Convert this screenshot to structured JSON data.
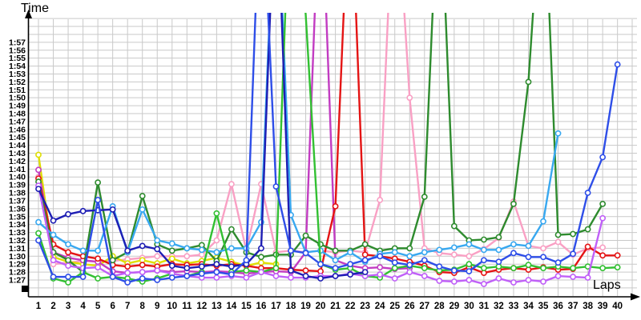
{
  "labels": {
    "y_axis_title": "Time",
    "x_axis_title": "Laps"
  },
  "chart_data": {
    "type": "line",
    "title": "",
    "xlabel": "Laps",
    "ylabel": "Time",
    "grid": true,
    "legend_position": "none",
    "x_tick_labels": [
      "1",
      "2",
      "3",
      "4",
      "5",
      "6",
      "7",
      "8",
      "9",
      "10",
      "11",
      "12",
      "13",
      "14",
      "15",
      "16",
      "17",
      "18",
      "19",
      "20",
      "21",
      "22",
      "23",
      "24",
      "25",
      "26",
      "27",
      "28",
      "29",
      "30",
      "31",
      "32",
      "33",
      "34",
      "35",
      "36",
      "37",
      "38",
      "39",
      "40"
    ],
    "y_tick_labels": [
      "1:27",
      "1:28",
      "1:29",
      "1:30",
      "1:31",
      "1:32",
      "1:33",
      "1:34",
      "1:35",
      "1:36",
      "1:37",
      "1:38",
      "1:39",
      "1:40",
      "1:41",
      "1:42",
      "1:43",
      "1:44",
      "1:45",
      "1:46",
      "1:47",
      "1:48",
      "1:49",
      "1:50",
      "1:51",
      "1:52",
      "1:53",
      "1:54",
      "1:55",
      "1:56",
      "1:57"
    ],
    "y_min_seconds": 87,
    "y_max_seconds": 117,
    "offscale_marker_value": 140,
    "units": "lap time in seconds (1:27 = 87s); 140 = spike above chart top (pit stop)",
    "series": [
      {
        "name": "pink",
        "color": "#f9a0c4",
        "values": [
          100,
          89,
          89.2,
          89.4,
          89.3,
          89.4,
          89.6,
          89.8,
          90,
          90,
          90,
          90.2,
          92,
          99.1,
          90.7,
          99.1,
          90.5,
          90.7,
          90.5,
          90.7,
          90.5,
          90.7,
          90.5,
          97.1,
          140,
          110,
          91,
          90.4,
          90.2,
          90,
          90.9,
          92.3,
          96.9,
          91.3,
          91,
          91.8,
          90.2,
          91,
          91.1
        ]
      },
      {
        "name": "yellow",
        "color": "#dede00",
        "values": [
          102.8,
          89.9,
          89.3,
          89,
          88.8,
          90,
          89.1,
          89.5,
          89.1,
          89.7,
          89.1,
          89.4,
          89.8,
          89.3,
          88.8,
          89.2,
          89
        ]
      },
      {
        "name": "magenta",
        "color": "#c23cc2",
        "values": [
          100.9,
          90.5,
          89.8,
          89.5,
          89.3,
          88.1,
          87.9,
          88,
          88.2,
          88,
          88.1,
          88,
          88.1,
          88,
          87.8,
          88,
          88.1,
          88,
          90.5,
          140,
          89.5,
          88.8,
          88.5,
          88.6,
          88.4,
          88.5
        ]
      },
      {
        "name": "red",
        "color": "#e41414",
        "values": [
          99.8,
          91.5,
          90.5,
          90,
          89.7,
          88.9,
          88.7,
          88.9,
          88.7,
          89,
          88.9,
          89,
          88.8,
          89,
          88.8,
          88.5,
          88.5,
          88.3,
          88.2,
          88.1,
          96.3,
          140,
          90.2,
          90,
          89.7,
          89.3,
          88.8,
          88,
          87.9,
          88.6,
          87.9,
          88.3,
          88.5,
          88.3,
          88.6,
          88.3,
          88.4,
          91.2,
          90.1,
          90.1
        ]
      },
      {
        "name": "dark-green",
        "color": "#2e8b2e",
        "values": [
          99.4,
          90.5,
          89.5,
          88,
          99.3,
          89.5,
          90.5,
          97.6,
          91.5,
          90.7,
          91,
          91.4,
          89.4,
          93.4,
          90.5,
          89.9,
          90.2,
          90.2,
          92.6,
          91.5,
          90.7,
          90.7,
          91.5,
          90.7,
          91,
          91,
          97.5,
          140,
          93.8,
          92,
          92.1,
          92.4,
          96.6,
          112,
          140,
          92.7,
          92.8,
          93.4,
          96.6
        ]
      },
      {
        "name": "light-blue",
        "color": "#38a8f0",
        "values": [
          94.3,
          92.7,
          91.5,
          90.7,
          90.7,
          96.3,
          90.5,
          95.9,
          92,
          91.6,
          91,
          90.8,
          90.5,
          91,
          91,
          94.3,
          140,
          95.2,
          90.5,
          90.7,
          89.5,
          90.5,
          89.3,
          90.3,
          90.5,
          90,
          90.5,
          90.8,
          91.1,
          91.5,
          90.8,
          90.8,
          91.5,
          91.3,
          94.4,
          105.5
        ]
      },
      {
        "name": "green",
        "color": "#32c032",
        "values": [
          92.9,
          87.2,
          86.7,
          88,
          87.2,
          87.4,
          87.2,
          86.8,
          87.2,
          87.8,
          87.5,
          88,
          95.4,
          88,
          88.2,
          88,
          88.5,
          140,
          120.5,
          89,
          88.3,
          88.5,
          87.5,
          87.3,
          88.5,
          88.8,
          88.5,
          88.2,
          88.3,
          89,
          88.5,
          88.7,
          88.5,
          88.9,
          88.5,
          88.7,
          88.5,
          88.7,
          88.5,
          88.6
        ]
      },
      {
        "name": "violet",
        "color": "#c060f8",
        "values": [
          98.9,
          89.5,
          88.8,
          88.5,
          88.6,
          87.5,
          87.9,
          88,
          88.2,
          87.8,
          87.5,
          87.3,
          87.3,
          87.5,
          87.3,
          88,
          87.5,
          87.3,
          87.3,
          87.5,
          87.5,
          87.8,
          87.5,
          87.7,
          87.2,
          88,
          87.5,
          86.9,
          86.8,
          87,
          86.5,
          87.2,
          86.7,
          87,
          86.8,
          87.5,
          87.4,
          87.3,
          94.8
        ]
      },
      {
        "name": "navy",
        "color": "#1e1eb4",
        "values": [
          98.5,
          94.5,
          95.3,
          95.7,
          95.8,
          95.9,
          90.7,
          91.3,
          90.9,
          88.8,
          88.5,
          88.7,
          89,
          88.7,
          89,
          91,
          140,
          88.2,
          87.5,
          87.2,
          87.5,
          87.7,
          88
        ]
      },
      {
        "name": "blue",
        "color": "#2e4ee8",
        "values": [
          92,
          87.4,
          87.4,
          87.4,
          97.1,
          87.4,
          86.7,
          87.2,
          87,
          87.3,
          87.5,
          87.8,
          88,
          87.7,
          89.5,
          140,
          98.8,
          90.7,
          90.4,
          89,
          88.5,
          89,
          89.5,
          90,
          89.2,
          88.9,
          89.5,
          88.7,
          88.2,
          88.1,
          89.5,
          89.3,
          90.4,
          89.9,
          89.9,
          89.2,
          90.3,
          98,
          102.5,
          114.2
        ]
      }
    ]
  }
}
